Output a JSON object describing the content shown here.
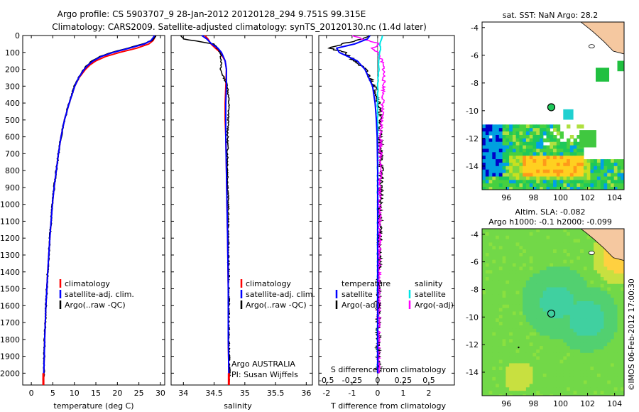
{
  "header": {
    "line1": "Argo profile: CS 5903707_9 28-Jan-2012 20120128_294 9.751S 99.315E",
    "line2": "Climatology: CARS2009. Satellite-adjusted climatology: synTS_20120130.nc (1.4d later)"
  },
  "colors": {
    "climatology": "#ff0000",
    "satellite": "#0000ff",
    "argo": "#000000",
    "sat_salinity": "#00e6e6",
    "argo_salinity": "#ff00ff"
  },
  "chart_data": [
    {
      "type": "line",
      "panel": "temperature",
      "xlabel": "temperature (deg C)",
      "ylabel": "",
      "xlim": [
        -2,
        31
      ],
      "ylim": [
        2070,
        0
      ],
      "x_ticks": [
        "0",
        "5",
        "10",
        "15",
        "20",
        "25",
        "30"
      ],
      "y_ticks": [
        "0",
        "100",
        "200",
        "300",
        "400",
        "500",
        "600",
        "700",
        "800",
        "900",
        "1000",
        "1100",
        "1200",
        "1300",
        "1400",
        "1500",
        "1600",
        "1700",
        "1800",
        "1900",
        "2000"
      ],
      "legend": [
        "climatology",
        "satellite-adj. clim.",
        "Argo(..raw -QC)"
      ],
      "depth": [
        0,
        10,
        30,
        50,
        75,
        100,
        125,
        150,
        175,
        200,
        250,
        300,
        400,
        500,
        600,
        700,
        800,
        900,
        1000,
        1200,
        1400,
        1600,
        1800,
        2000,
        2050
      ],
      "series": [
        {
          "name": "climatology",
          "temp": [
            28.8,
            28.7,
            28.3,
            27.3,
            24.5,
            20.5,
            17.2,
            15.0,
            13.6,
            12.6,
            11.1,
            10.1,
            8.8,
            7.7,
            6.9,
            6.3,
            5.8,
            5.3,
            4.9,
            4.3,
            3.8,
            3.4,
            3.1,
            2.9,
            2.8
          ]
        },
        {
          "name": "satellite-adj. clim.",
          "temp": [
            28.6,
            28.4,
            27.8,
            26.3,
            22.8,
            19.0,
            16.2,
            14.4,
            13.2,
            12.3,
            11.0,
            10.1,
            8.8,
            7.7,
            6.9,
            6.3,
            5.8,
            5.3,
            4.9,
            4.3,
            3.8,
            3.4,
            3.1,
            2.9,
            2.8
          ]
        },
        {
          "name": "Argo(..raw -QC)",
          "temp": [
            28.9,
            28.8,
            28.0,
            26.0,
            22.5,
            18.8,
            16.0,
            14.2,
            13.0,
            12.2,
            11.0,
            10.0,
            8.8,
            7.7,
            6.9,
            6.3,
            5.8,
            5.3,
            4.9,
            4.3,
            3.8,
            3.4,
            3.1,
            2.9,
            2.8
          ]
        }
      ]
    },
    {
      "type": "line",
      "panel": "salinity",
      "xlabel": "salinity",
      "xlim": [
        33.8,
        36.1
      ],
      "ylim": [
        2070,
        0
      ],
      "x_ticks": [
        "34",
        "34.5",
        "35",
        "35.5",
        "36"
      ],
      "legend": [
        "climatology",
        "satellite-adj. clim.",
        "Argo(..raw -QC)"
      ],
      "annotation": [
        "Argo AUSTRALIA",
        "PI: Susan Wijffels"
      ],
      "depth": [
        0,
        20,
        50,
        75,
        100,
        150,
        200,
        300,
        400,
        500,
        600,
        800,
        1000,
        1200,
        1500,
        1800,
        2000,
        2050
      ],
      "series": [
        {
          "name": "climatology",
          "sal": [
            34.35,
            34.4,
            34.45,
            34.52,
            34.6,
            34.68,
            34.7,
            34.69,
            34.68,
            34.68,
            34.69,
            34.7,
            34.71,
            34.72,
            34.73,
            34.73,
            34.74,
            34.74
          ]
        },
        {
          "name": "satellite-adj. clim.",
          "sal": [
            34.3,
            34.38,
            34.46,
            34.56,
            34.62,
            34.68,
            34.7,
            34.7,
            34.69,
            34.69,
            34.69,
            34.7,
            34.71,
            34.72,
            34.73,
            34.73,
            34.74,
            34.74
          ]
        },
        {
          "name": "Argo(..raw -QC)",
          "sal": [
            33.95,
            34.0,
            34.5,
            34.55,
            34.6,
            34.62,
            34.6,
            34.72,
            34.74,
            34.73,
            34.72,
            34.72,
            34.73,
            34.73,
            34.74,
            34.74,
            34.75,
            34.75
          ]
        }
      ]
    },
    {
      "type": "line",
      "panel": "difference",
      "xlabel": "T difference from climatology",
      "xlabel_top": "S difference from climatology",
      "xlim": [
        -2.3,
        3.0
      ],
      "ylim": [
        2070,
        0
      ],
      "x_ticks": [
        "-2",
        "-1",
        "0",
        "1",
        "2"
      ],
      "x_ticks_top": [
        "-0.5",
        "-0.25",
        "0",
        "0.25",
        "0.5"
      ],
      "legend": {
        "temperature": [
          "satellite",
          "Argo(-adj)"
        ],
        "salinity": [
          "satellite",
          "Argo(-adj)"
        ]
      },
      "depth": [
        0,
        20,
        50,
        75,
        100,
        150,
        200,
        300,
        400,
        500,
        600,
        800,
        1000,
        1200,
        1500,
        1800,
        2000
      ],
      "series": [
        {
          "name": "satellite",
          "group": "temperature",
          "dT": [
            -0.3,
            -0.4,
            -0.9,
            -1.6,
            -1.5,
            -0.8,
            -0.5,
            -0.2,
            -0.1,
            -0.05,
            -0.02,
            0,
            0,
            0,
            0,
            0,
            0
          ]
        },
        {
          "name": "Argo(-adj)",
          "group": "temperature",
          "dT": [
            -0.2,
            -0.6,
            -1.4,
            -1.9,
            -1.3,
            -0.9,
            -0.5,
            -0.1,
            0.05,
            0.1,
            0.1,
            0.15,
            0.1,
            0.08,
            0.04,
            0.02,
            0.01
          ]
        },
        {
          "name": "satellite",
          "group": "salinity",
          "dS": [
            0.05,
            0.04,
            0.02,
            0.03,
            0.02,
            0.01,
            0.01,
            0.0,
            0.0,
            0.0,
            0.0,
            0.0,
            0.0,
            0.0,
            0.0,
            0.0,
            0.0
          ]
        },
        {
          "name": "Argo(-adj)",
          "group": "salinity",
          "dS": [
            -0.25,
            -0.15,
            0.02,
            -0.05,
            0.0,
            0.04,
            0.06,
            0.06,
            0.05,
            0.04,
            0.03,
            0.03,
            0.02,
            0.02,
            0.01,
            0.01,
            0.01
          ]
        }
      ]
    },
    {
      "type": "heatmap",
      "panel": "sst-map",
      "title": "sat. SST: NaN Argo: 28.2",
      "x_ticks": [
        "96",
        "98",
        "100",
        "102",
        "104"
      ],
      "y_ticks": [
        "-4",
        "-6",
        "-8",
        "-10",
        "-12",
        "-14"
      ],
      "xlim": [
        94.2,
        104.7
      ],
      "ylim": [
        -15.7,
        -3.6
      ],
      "argo_position": [
        99.315,
        -9.751
      ]
    },
    {
      "type": "heatmap",
      "panel": "sla-map",
      "title_line1": "Altim. SLA: -0.082",
      "title_line2": "Argo h1000: -0.1 h2000: -0.099",
      "x_ticks": [
        "96",
        "98",
        "100",
        "102",
        "104"
      ],
      "y_ticks": [
        "-4",
        "-6",
        "-8",
        "-10",
        "-12",
        "-14"
      ],
      "xlim": [
        94.2,
        104.7
      ],
      "ylim": [
        -15.7,
        -3.6
      ],
      "argo_position": [
        99.315,
        -9.751
      ]
    }
  ],
  "footer": {
    "credit": "©IMOS 06-Feb-2012 17:00:30"
  }
}
